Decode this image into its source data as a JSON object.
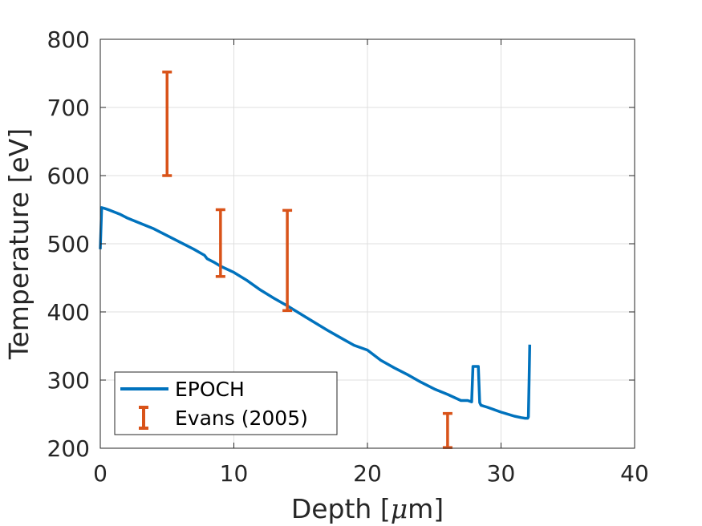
{
  "chart_data": {
    "type": "line",
    "xlabel_pre": "Depth [",
    "xlabel_mu": "μ",
    "xlabel_post": "m]",
    "ylabel": "Temperature [eV]",
    "xlim": [
      0,
      40
    ],
    "ylim": [
      200,
      800
    ],
    "xticks": [
      0,
      10,
      20,
      30,
      40
    ],
    "yticks": [
      200,
      300,
      400,
      500,
      600,
      700,
      800
    ],
    "xtick_labels": [
      "0",
      "10",
      "20",
      "30",
      "40"
    ],
    "ytick_labels": [
      "200",
      "300",
      "400",
      "500",
      "600",
      "700",
      "800"
    ],
    "grid": true,
    "legend_position": "bottom-left",
    "series": [
      {
        "name": "EPOCH",
        "color": "#0072BD",
        "type": "line",
        "x": [
          0.0,
          0.1,
          0.3,
          0.6,
          1.0,
          1.5,
          2.0,
          3.0,
          4.0,
          5.0,
          6.0,
          7.0,
          7.8,
          8.0,
          8.5,
          9.0,
          10.0,
          11.0,
          12.0,
          13.0,
          14.0,
          15.0,
          16.0,
          17.0,
          18.0,
          19.0,
          20.0,
          21.0,
          22.0,
          23.0,
          24.0,
          25.0,
          26.0,
          27.0,
          27.5,
          27.8,
          27.9,
          28.0,
          28.3,
          28.4,
          28.5,
          29.0,
          30.0,
          31.0,
          31.5,
          31.8,
          32.0,
          32.05,
          32.1,
          32.15
        ],
        "y": [
          492,
          553,
          552,
          550,
          547,
          543,
          538,
          530,
          522,
          512,
          502,
          492,
          483,
          478,
          473,
          467,
          458,
          446,
          432,
          420,
          409,
          397,
          385,
          373,
          362,
          351,
          344,
          329,
          318,
          308,
          297,
          287,
          279,
          270,
          270,
          268,
          320,
          320,
          320,
          267,
          263,
          260,
          253,
          247,
          245,
          244,
          244,
          246,
          300,
          352
        ]
      },
      {
        "name": "Evans (2005)",
        "color": "#D95319",
        "type": "errorbar",
        "x": [
          5,
          9,
          14,
          26
        ],
        "low": [
          600,
          452,
          402,
          201
        ],
        "high": [
          752,
          550,
          549,
          251
        ]
      }
    ]
  }
}
